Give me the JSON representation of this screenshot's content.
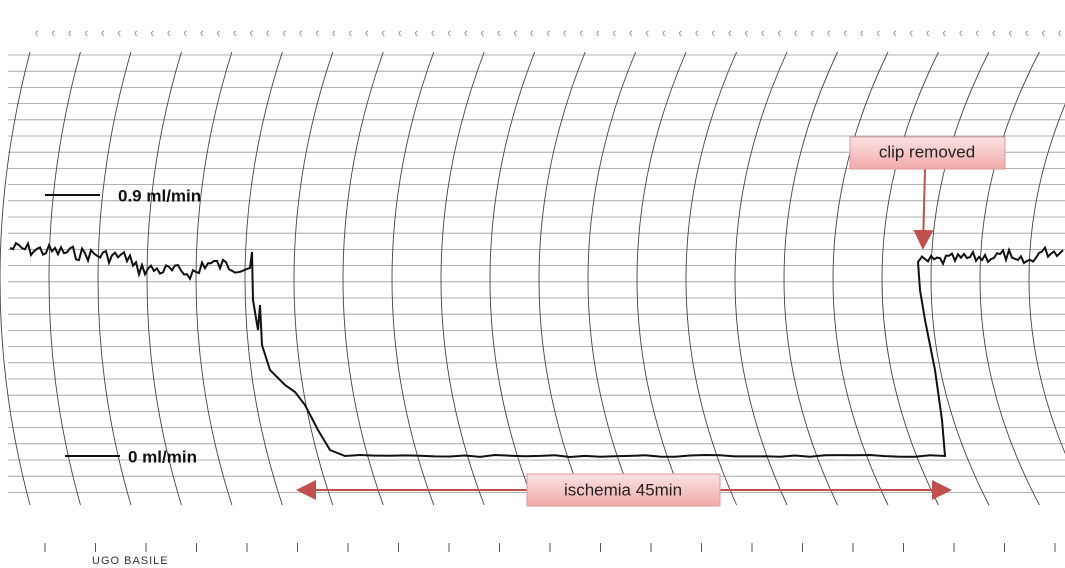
{
  "labels": {
    "high": "0.9 ml/min",
    "zero": "0 ml/min",
    "clip": "clip removed",
    "ischemia": "ischemia 45min",
    "brand": "UGO BASILE"
  }
}
